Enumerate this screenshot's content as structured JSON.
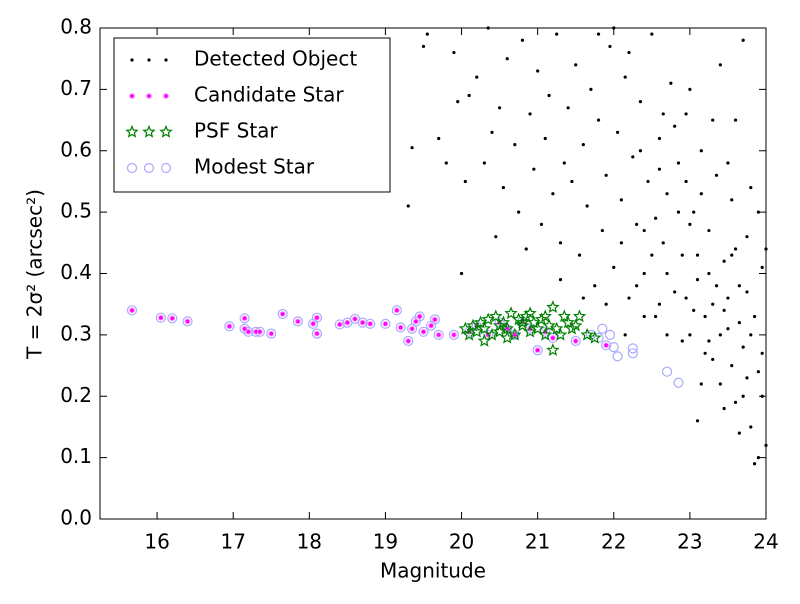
{
  "chart_data": {
    "type": "scatter",
    "xlabel": "Magnitude",
    "ylabel": "T = 2σ² (arcsec²)",
    "xlim": [
      15.25,
      24
    ],
    "ylim": [
      0,
      0.8
    ],
    "xticks": [
      16,
      17,
      18,
      19,
      20,
      21,
      22,
      23,
      24
    ],
    "yticks": [
      {
        "value": 0,
        "label": "0.0"
      },
      0.1,
      0.2,
      0.3,
      0.4,
      0.5,
      0.6,
      0.7,
      0.8
    ],
    "legend": "upper left",
    "series": [
      {
        "name": "Detected Object",
        "color": "#000000",
        "marker": "dot",
        "x": [
          19.3,
          19.35,
          19.5,
          19.55,
          19.7,
          19.9,
          19.95,
          20.05,
          20.1,
          20.2,
          20.3,
          20.35,
          20.4,
          20.45,
          20.5,
          20.55,
          20.6,
          20.7,
          20.75,
          20.8,
          20.85,
          20.9,
          20.95,
          21.0,
          21.05,
          21.1,
          21.15,
          21.2,
          21.25,
          21.3,
          21.35,
          21.4,
          21.45,
          21.5,
          21.55,
          21.6,
          21.65,
          21.7,
          21.75,
          21.8,
          21.85,
          21.9,
          21.95,
          22.0,
          22.05,
          22.1,
          22.15,
          22.2,
          22.25,
          22.3,
          22.35,
          22.4,
          22.45,
          22.5,
          22.55,
          22.6,
          22.65,
          22.7,
          22.75,
          22.8,
          22.85,
          22.9,
          22.95,
          23.0,
          23.05,
          23.1,
          23.15,
          23.2,
          23.25,
          23.3,
          23.35,
          23.4,
          23.45,
          23.5,
          23.55,
          23.6,
          23.65,
          23.7,
          23.75,
          23.8,
          23.85,
          23.9,
          23.95,
          24.0,
          23.1,
          23.3,
          23.5,
          23.7,
          23.9,
          23.6,
          23.4,
          23.2,
          22.9,
          22.7,
          22.5,
          22.3,
          22.1,
          21.9,
          23.0,
          23.8,
          23.95,
          23.55,
          23.25,
          22.85,
          22.6,
          22.4,
          22.95,
          23.45,
          23.75,
          23.15,
          23.65,
          23.85,
          22.2,
          22.0,
          21.8,
          23.4,
          23.7,
          23.3,
          23.0,
          22.8,
          22.6,
          23.5,
          23.8,
          24.0,
          23.95,
          23.9,
          23.6,
          22.4,
          22.7,
          23.1,
          23.35,
          20.0,
          19.8,
          21.3,
          21.6,
          22.15,
          22.55,
          22.35,
          23.05,
          23.25,
          23.55,
          23.75,
          23.45,
          22.95,
          22.65,
          23.15,
          23.65
        ],
        "values": [
          0.51,
          0.605,
          0.77,
          0.79,
          0.62,
          0.76,
          0.68,
          0.55,
          0.69,
          0.72,
          0.58,
          0.8,
          0.63,
          0.46,
          0.67,
          0.54,
          0.75,
          0.61,
          0.5,
          0.78,
          0.44,
          0.66,
          0.57,
          0.73,
          0.48,
          0.62,
          0.69,
          0.53,
          0.79,
          0.45,
          0.58,
          0.67,
          0.55,
          0.74,
          0.43,
          0.61,
          0.51,
          0.7,
          0.38,
          0.65,
          0.47,
          0.56,
          0.77,
          0.41,
          0.63,
          0.52,
          0.72,
          0.36,
          0.59,
          0.48,
          0.68,
          0.4,
          0.55,
          0.79,
          0.33,
          0.62,
          0.45,
          0.53,
          0.71,
          0.37,
          0.58,
          0.43,
          0.66,
          0.3,
          0.5,
          0.39,
          0.6,
          0.27,
          0.47,
          0.35,
          0.56,
          0.22,
          0.42,
          0.31,
          0.52,
          0.19,
          0.38,
          0.28,
          0.46,
          0.15,
          0.33,
          0.24,
          0.41,
          0.12,
          0.16,
          0.26,
          0.36,
          0.2,
          0.1,
          0.44,
          0.3,
          0.33,
          0.29,
          0.4,
          0.43,
          0.38,
          0.45,
          0.35,
          0.48,
          0.3,
          0.2,
          0.25,
          0.4,
          0.5,
          0.35,
          0.47,
          0.36,
          0.34,
          0.37,
          0.22,
          0.14,
          0.09,
          0.76,
          0.8,
          0.79,
          0.74,
          0.78,
          0.65,
          0.7,
          0.64,
          0.57,
          0.58,
          0.54,
          0.44,
          0.27,
          0.5,
          0.65,
          0.33,
          0.3,
          0.43,
          0.38,
          0.4,
          0.58,
          0.39,
          0.36,
          0.3,
          0.49,
          0.6,
          0.34,
          0.29,
          0.43,
          0.23,
          0.18,
          0.55,
          0.66,
          0.53,
          0.32
        ]
      },
      {
        "name": "Candidate Star",
        "color": "#ff00ff",
        "marker": "circle",
        "x": [
          15.67,
          16.05,
          16.2,
          16.4,
          16.95,
          17.15,
          17.15,
          17.2,
          17.3,
          17.35,
          17.5,
          17.65,
          17.85,
          18.05,
          18.1,
          18.1,
          18.4,
          18.5,
          18.6,
          18.7,
          18.8,
          19.0,
          19.15,
          19.2,
          19.3,
          19.35,
          19.4,
          19.45,
          19.5,
          19.6,
          19.65,
          19.7,
          19.9,
          20.1,
          20.2,
          20.35,
          20.5,
          20.6,
          20.7,
          20.8,
          20.9,
          21.0,
          21.1,
          21.2,
          21.5,
          21.9
        ],
        "values": [
          0.34,
          0.328,
          0.327,
          0.322,
          0.314,
          0.327,
          0.31,
          0.305,
          0.305,
          0.305,
          0.302,
          0.334,
          0.322,
          0.318,
          0.328,
          0.302,
          0.317,
          0.32,
          0.326,
          0.32,
          0.318,
          0.318,
          0.34,
          0.312,
          0.29,
          0.31,
          0.322,
          0.33,
          0.305,
          0.315,
          0.325,
          0.3,
          0.3,
          0.305,
          0.315,
          0.3,
          0.32,
          0.31,
          0.3,
          0.322,
          0.31,
          0.275,
          0.305,
          0.295,
          0.29,
          0.283
        ]
      },
      {
        "name": "PSF Star",
        "color": "#008000",
        "marker": "star",
        "x": [
          20.05,
          20.1,
          20.15,
          20.2,
          20.25,
          20.3,
          20.35,
          20.4,
          20.45,
          20.5,
          20.55,
          20.6,
          20.65,
          20.7,
          20.75,
          20.8,
          20.85,
          20.9,
          20.95,
          21.0,
          21.05,
          21.1,
          21.15,
          21.2,
          21.25,
          21.3,
          21.35,
          21.4,
          21.5,
          21.55,
          21.65,
          21.75,
          20.3,
          20.6,
          20.9,
          21.2,
          20.5,
          20.8,
          21.1,
          21.45
        ],
        "values": [
          0.31,
          0.3,
          0.315,
          0.305,
          0.32,
          0.31,
          0.325,
          0.3,
          0.33,
          0.315,
          0.32,
          0.31,
          0.335,
          0.3,
          0.325,
          0.315,
          0.33,
          0.305,
          0.32,
          0.31,
          0.325,
          0.3,
          0.315,
          0.345,
          0.31,
          0.3,
          0.33,
          0.32,
          0.315,
          0.33,
          0.3,
          0.295,
          0.29,
          0.295,
          0.335,
          0.275,
          0.305,
          0.32,
          0.33,
          0.31
        ]
      },
      {
        "name": "Modest Star",
        "color": "#aaaaff",
        "marker": "ring",
        "x": [
          15.67,
          16.05,
          16.2,
          16.4,
          16.95,
          17.15,
          17.15,
          17.2,
          17.3,
          17.35,
          17.5,
          17.65,
          17.85,
          18.05,
          18.1,
          18.1,
          18.4,
          18.5,
          18.6,
          18.7,
          18.8,
          19.0,
          19.15,
          19.2,
          19.3,
          19.35,
          19.4,
          19.45,
          19.5,
          19.6,
          19.65,
          19.7,
          19.9,
          20.1,
          20.2,
          20.35,
          20.5,
          20.6,
          20.7,
          20.8,
          20.9,
          21.0,
          21.1,
          21.2,
          21.5,
          21.9,
          21.7,
          21.8,
          21.85,
          21.95,
          22.0,
          22.05,
          22.25,
          22.25,
          22.7,
          22.85
        ],
        "values": [
          0.34,
          0.328,
          0.327,
          0.322,
          0.314,
          0.327,
          0.31,
          0.305,
          0.305,
          0.305,
          0.302,
          0.334,
          0.322,
          0.318,
          0.328,
          0.302,
          0.317,
          0.32,
          0.326,
          0.32,
          0.318,
          0.318,
          0.34,
          0.312,
          0.29,
          0.31,
          0.322,
          0.33,
          0.305,
          0.315,
          0.325,
          0.3,
          0.3,
          0.305,
          0.315,
          0.3,
          0.32,
          0.31,
          0.3,
          0.322,
          0.31,
          0.275,
          0.305,
          0.295,
          0.29,
          0.283,
          0.3,
          0.295,
          0.31,
          0.3,
          0.28,
          0.265,
          0.27,
          0.278,
          0.24,
          0.222
        ]
      }
    ]
  }
}
